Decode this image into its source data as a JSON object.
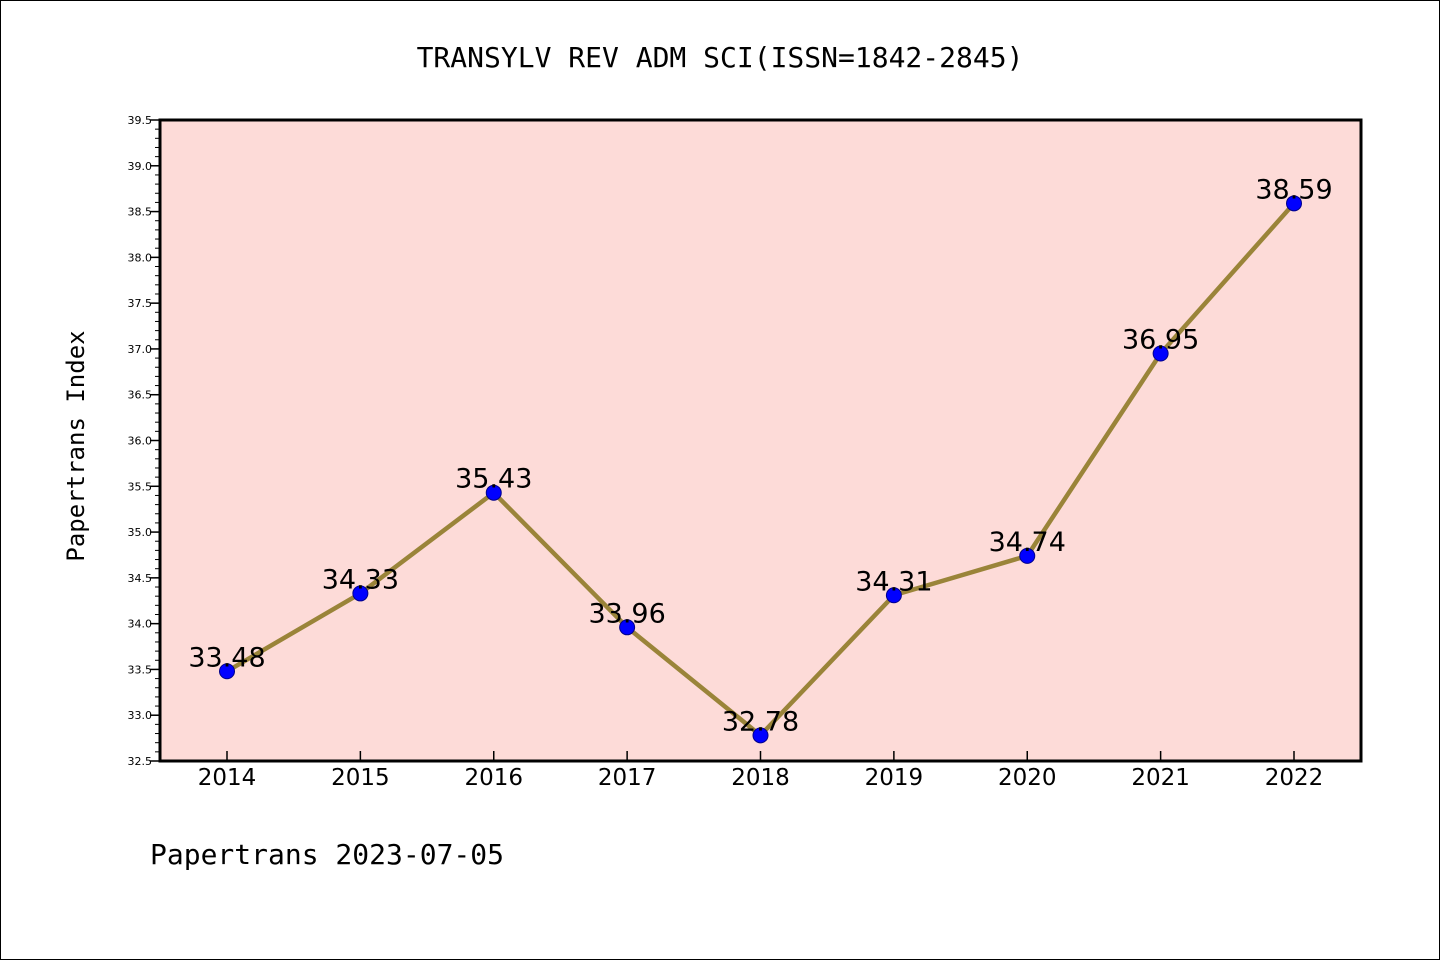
{
  "chart_data": {
    "type": "line",
    "title": "TRANSYLV REV ADM SCI(ISSN=1842-2845)",
    "xlabel": "",
    "ylabel": "Papertrans Index",
    "footer": "Papertrans 2023-07-05",
    "categories": [
      "2014",
      "2015",
      "2016",
      "2017",
      "2018",
      "2019",
      "2020",
      "2021",
      "2022"
    ],
    "series": [
      {
        "values": [
          33.48,
          34.33,
          35.43,
          33.96,
          32.78,
          34.31,
          34.74,
          36.95,
          38.59
        ],
        "labels": [
          "33.48",
          "34.33",
          "35.43",
          "33.96",
          "32.78",
          "34.31",
          "34.74",
          "36.95",
          "38.59"
        ]
      }
    ],
    "ylim": [
      32.5,
      39.5
    ],
    "yticks": [
      "32.5",
      "33.0",
      "33.5",
      "34.0",
      "34.5",
      "35.0",
      "35.5",
      "36.0",
      "36.5",
      "37.0",
      "37.5",
      "38.0",
      "38.5",
      "39.0",
      "39.5"
    ],
    "grid": false,
    "legend": "none",
    "colors": {
      "plot_background": "#fddbd8",
      "line": "#9a8439",
      "marker": "#0000ff",
      "axis": "#000000"
    }
  }
}
